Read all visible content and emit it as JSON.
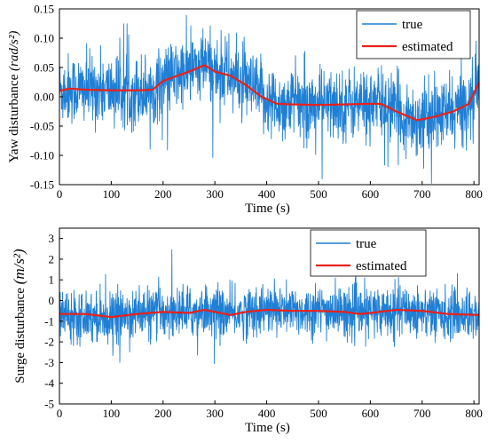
{
  "chart_data": [
    {
      "type": "line",
      "xlabel": "Time (s)",
      "ylabel": "Yaw disturbance",
      "ylabel_unit": "(rad/s²)",
      "xlim": [
        0,
        810
      ],
      "ylim": [
        -0.15,
        0.15
      ],
      "xticks": [
        "0",
        "100",
        "200",
        "300",
        "400",
        "500",
        "600",
        "700",
        "800"
      ],
      "yticks": [
        "-0.15",
        "-0.10",
        "-0.05",
        "0.00",
        "0.05",
        "0.10",
        "0.15"
      ],
      "legend_position": "top-right",
      "grid": false,
      "series": [
        {
          "name": "true",
          "color": "#1f7fd4",
          "noise_std": 0.03,
          "baseline": "estimated"
        },
        {
          "name": "estimated",
          "color": "#e8201a",
          "x": [
            0,
            20,
            50,
            100,
            150,
            180,
            200,
            250,
            280,
            300,
            330,
            360,
            390,
            420,
            450,
            500,
            550,
            600,
            620,
            650,
            690,
            720,
            760,
            790,
            810
          ],
          "y": [
            0.01,
            0.014,
            0.012,
            0.011,
            0.011,
            0.012,
            0.027,
            0.043,
            0.054,
            0.043,
            0.036,
            0.02,
            0.0,
            -0.012,
            -0.013,
            -0.014,
            -0.013,
            -0.012,
            -0.012,
            -0.025,
            -0.04,
            -0.035,
            -0.025,
            -0.012,
            0.025
          ]
        }
      ]
    },
    {
      "type": "line",
      "xlabel": "Time (s)",
      "ylabel": "Surge disturbance",
      "ylabel_unit": "(m/s²)",
      "xlim": [
        0,
        810
      ],
      "ylim": [
        -5,
        3.5
      ],
      "xticks": [
        "0",
        "100",
        "200",
        "300",
        "400",
        "500",
        "600",
        "700",
        "800"
      ],
      "yticks": [
        "-5",
        "-4",
        "-3",
        "-2",
        "-1",
        "0",
        "1",
        "2",
        "3"
      ],
      "legend_position": "top-right",
      "grid": false,
      "series": [
        {
          "name": "true",
          "color": "#1f7fd4",
          "noise_std": 0.6,
          "baseline": "estimated"
        },
        {
          "name": "estimated",
          "color": "#e8201a",
          "x": [
            0,
            50,
            100,
            150,
            200,
            250,
            280,
            300,
            330,
            360,
            400,
            450,
            500,
            550,
            580,
            600,
            650,
            700,
            750,
            810
          ],
          "y": [
            -0.65,
            -0.65,
            -0.8,
            -0.65,
            -0.55,
            -0.6,
            -0.45,
            -0.55,
            -0.7,
            -0.55,
            -0.45,
            -0.5,
            -0.5,
            -0.55,
            -0.65,
            -0.6,
            -0.45,
            -0.5,
            -0.65,
            -0.7
          ]
        }
      ]
    }
  ]
}
